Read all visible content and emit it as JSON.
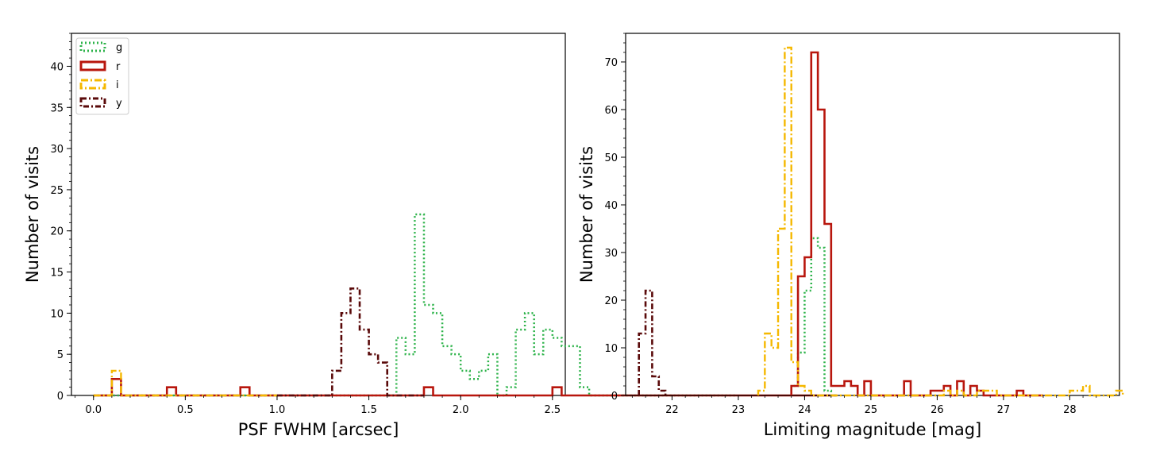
{
  "colors": {
    "g": "#2db34a",
    "r": "#b8160d",
    "i": "#f5b800",
    "y": "#5a0a0a"
  },
  "chart_data": [
    {
      "type": "histogram",
      "xlabel": "PSF FWHM [arcsec]",
      "ylabel": "Number of visits",
      "xlim": [
        -0.12,
        2.57
      ],
      "ylim": [
        0,
        44
      ],
      "xticks": [
        "0.0",
        "0.5",
        "1.0",
        "1.5",
        "2.0",
        "2.5"
      ],
      "yticks": [
        "0",
        "5",
        "10",
        "15",
        "20",
        "25",
        "30",
        "35",
        "40"
      ],
      "xtick_values": [
        0,
        0.5,
        1.0,
        1.5,
        2.0,
        2.5
      ],
      "ytick_values": [
        0,
        5,
        10,
        15,
        20,
        25,
        30,
        35,
        40
      ],
      "legend": {
        "placement": "top-left",
        "entries": [
          "g",
          "r",
          "i",
          "y"
        ]
      },
      "bin_width": 0.05,
      "series": [
        {
          "name": "g",
          "edges_start": 0.0,
          "values": [
            0,
            0,
            0,
            0,
            0,
            0,
            0,
            0,
            0,
            0,
            0,
            0,
            0,
            0,
            0,
            0,
            0,
            0,
            0,
            0,
            0,
            0,
            0,
            0,
            0,
            0,
            0,
            0,
            0,
            0,
            0,
            0,
            0,
            7,
            5,
            22,
            11,
            10,
            6,
            5,
            3,
            2,
            3,
            5,
            0,
            1,
            8,
            10,
            5,
            8,
            7,
            6,
            6,
            1,
            0,
            0,
            0,
            0,
            0,
            0,
            0,
            0,
            0,
            0,
            0,
            0,
            0,
            0,
            0,
            0
          ]
        },
        {
          "name": "r",
          "edges_start": 0.0,
          "values": [
            0,
            0,
            2,
            0,
            0,
            0,
            0,
            0,
            1,
            0,
            0,
            0,
            0,
            0,
            0,
            0,
            1,
            0,
            0,
            0,
            0,
            0,
            0,
            0,
            0,
            0,
            0,
            0,
            0,
            0,
            0,
            0,
            0,
            0,
            0,
            0,
            1,
            0,
            0,
            0,
            0,
            0,
            0,
            0,
            0,
            0,
            0,
            0,
            0,
            0,
            1,
            0,
            0,
            0,
            0,
            0,
            0,
            0,
            0,
            0,
            0,
            0,
            0,
            0,
            0,
            0,
            0,
            0,
            0,
            0,
            0,
            0,
            0,
            0,
            0,
            0,
            0,
            0,
            0,
            0,
            0
          ]
        },
        {
          "name": "i",
          "edges_start": 0.0,
          "values": [
            0,
            0,
            3,
            0,
            0,
            0,
            0,
            0,
            0,
            0,
            0,
            0,
            0,
            0,
            0,
            0,
            0,
            0,
            0,
            0
          ]
        },
        {
          "name": "y",
          "edges_start": 1.0,
          "values": [
            0,
            0,
            0,
            0,
            0,
            0,
            3,
            10,
            13,
            8,
            5,
            4,
            0,
            0,
            0,
            0
          ]
        }
      ]
    },
    {
      "type": "histogram",
      "xlabel": "Limiting magnitude [mag]",
      "ylabel": "Number of visits",
      "xlim": [
        21.3,
        28.75
      ],
      "ylim": [
        0,
        76
      ],
      "xticks": [
        "22",
        "23",
        "24",
        "25",
        "26",
        "27",
        "28"
      ],
      "yticks": [
        "0",
        "10",
        "20",
        "30",
        "40",
        "50",
        "60",
        "70"
      ],
      "xtick_values": [
        22,
        23,
        24,
        25,
        26,
        27,
        28
      ],
      "ytick_values": [
        0,
        10,
        20,
        30,
        40,
        50,
        60,
        70
      ],
      "bin_width": 0.1,
      "series": [
        {
          "name": "g",
          "edges_start": 23.8,
          "values": [
            2,
            9,
            22,
            33,
            31,
            1,
            0
          ]
        },
        {
          "name": "r",
          "edges_start": 23.8,
          "values": [
            2,
            25,
            29,
            72,
            60,
            36,
            2,
            2,
            3,
            2,
            0,
            3,
            0,
            0,
            0,
            0,
            0,
            3,
            0,
            0,
            0,
            1,
            1,
            2,
            0,
            3,
            0,
            2,
            1,
            0,
            0,
            0,
            0,
            0,
            1,
            0,
            0,
            0
          ]
        },
        {
          "name": "i",
          "edges_start": 23.3,
          "values": [
            1,
            13,
            10,
            35,
            73,
            7,
            2,
            1,
            0,
            0,
            0,
            0,
            0,
            0,
            0,
            0,
            0,
            0,
            0,
            0,
            0,
            0,
            0,
            0,
            0,
            0,
            0,
            0,
            1,
            0,
            1,
            0,
            0,
            1,
            1,
            1,
            0,
            0,
            0,
            0,
            0,
            0,
            0,
            0,
            0,
            0,
            0,
            1,
            1,
            2,
            0,
            0,
            0,
            0,
            1
          ]
        },
        {
          "name": "y",
          "edges_start": 21.5,
          "values": [
            13,
            22,
            4,
            1
          ]
        }
      ]
    }
  ]
}
